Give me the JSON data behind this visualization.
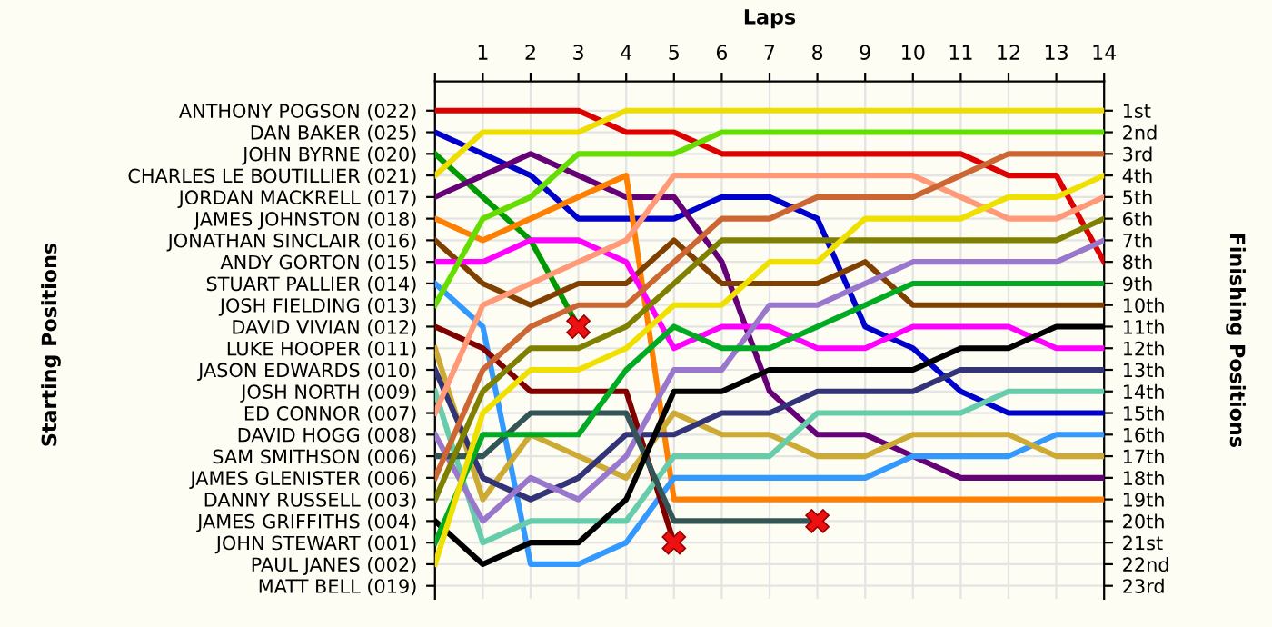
{
  "chart_data": {
    "type": "line",
    "xlabel": "Laps",
    "annotations": [
      "Starting Positions"
    ],
    "y2label": "Finishing Positions",
    "x": [
      0,
      1,
      2,
      3,
      4,
      5,
      6,
      7,
      8,
      9,
      10,
      11,
      12,
      13,
      14
    ],
    "xlim": [
      0,
      14
    ],
    "xticks": [
      {
        "value": 0,
        "label": null
      },
      1,
      2,
      3,
      4,
      5,
      6,
      7,
      8,
      9,
      10,
      11,
      12,
      13,
      14
    ],
    "y_categories": [
      "ANTHONY POGSON (022)",
      "DAN BAKER (025)",
      "JOHN BYRNE (020)",
      "CHARLES LE BOUTILLIER (021)",
      "JORDAN MACKRELL (017)",
      "JAMES JOHNSTON (018)",
      "JONATHAN SINCLAIR (016)",
      "ANDY GORTON (015)",
      "STUART PALLIER (014)",
      "JOSH FIELDING (013)",
      "DAVID VIVIAN (012)",
      "LUKE HOOPER (011)",
      "JASON EDWARDS (010)",
      "JOSH NORTH (009)",
      "ED CONNOR (007)",
      "DAVID HOGG (008)",
      "SAM SMITHSON (006)",
      "JAMES GLENISTER (006)",
      "DANNY RUSSELL (003)",
      "JAMES GRIFFITHS (004)",
      "JOHN STEWART (001)",
      "PAUL JANES (002)",
      "MATT BELL (019)"
    ],
    "y2lim": [
      23.6,
      -0.35
    ],
    "y2ticks": [
      {
        "value": 1,
        "label": "1st"
      },
      {
        "value": 2,
        "label": "2nd"
      },
      {
        "value": 3,
        "label": "3rd"
      },
      {
        "value": 4,
        "label": "4th"
      },
      {
        "value": 5,
        "label": "5th"
      },
      {
        "value": 6,
        "label": "6th"
      },
      {
        "value": 7,
        "label": "7th"
      },
      {
        "value": 8,
        "label": "8th"
      },
      {
        "value": 9,
        "label": "9th"
      },
      {
        "value": 10,
        "label": "10th"
      },
      {
        "value": 11,
        "label": "11th"
      },
      {
        "value": 12,
        "label": "12th"
      },
      {
        "value": 13,
        "label": "13th"
      },
      {
        "value": 14,
        "label": "14th"
      },
      {
        "value": 15,
        "label": "15th"
      },
      {
        "value": 16,
        "label": "16th"
      },
      {
        "value": 17,
        "label": "17th"
      },
      {
        "value": 18,
        "label": "18th"
      },
      {
        "value": 19,
        "label": "19th"
      },
      {
        "value": 20,
        "label": "20th"
      },
      {
        "value": 21,
        "label": "21st"
      },
      {
        "value": 22,
        "label": "22nd"
      },
      {
        "value": 23,
        "label": "23rd"
      }
    ],
    "grid": true,
    "marker": "none",
    "line_style": "solid",
    "series": [
      {
        "axis": "y2",
        "color": "#dd0000",
        "values": [
          1,
          1,
          1,
          1,
          2,
          2,
          3,
          3,
          3,
          3,
          3,
          3,
          4,
          4,
          8
        ]
      },
      {
        "axis": "y2",
        "color": "#0000cc",
        "values": [
          2,
          3,
          4,
          6,
          6,
          6,
          5,
          5,
          6,
          11,
          12,
          14,
          15,
          15,
          15
        ]
      },
      {
        "axis": "y2",
        "color": "#009900",
        "values": [
          3,
          5,
          7,
          11,
          null,
          null,
          null,
          null,
          null,
          null,
          null,
          null,
          null,
          null,
          null
        ]
      },
      {
        "axis": "y2",
        "color": "#eedd00",
        "values": [
          4,
          2,
          2,
          2,
          1,
          1,
          1,
          1,
          1,
          1,
          1,
          1,
          1,
          1,
          1
        ]
      },
      {
        "axis": "y2",
        "color": "#660077",
        "values": [
          5,
          4,
          3,
          4,
          5,
          5,
          8,
          14,
          16,
          16,
          17,
          18,
          18,
          18,
          18
        ]
      },
      {
        "axis": "y2",
        "color": "#ff8000",
        "values": [
          6,
          7,
          6,
          5,
          4,
          19,
          19,
          19,
          19,
          19,
          19,
          19,
          19,
          19,
          19
        ]
      },
      {
        "axis": "y2",
        "color": "#804000",
        "values": [
          7,
          9,
          10,
          9,
          9,
          7,
          9,
          9,
          9,
          8,
          10,
          10,
          10,
          10,
          10
        ]
      },
      {
        "axis": "y2",
        "color": "#ff00ff",
        "values": [
          8,
          8,
          7,
          7,
          8,
          12,
          11,
          11,
          12,
          12,
          11,
          11,
          11,
          12,
          12
        ]
      },
      {
        "axis": "y2",
        "color": "#3399ff",
        "values": [
          9,
          11,
          22,
          22,
          21,
          18,
          18,
          18,
          18,
          18,
          17,
          17,
          17,
          16,
          16
        ]
      },
      {
        "axis": "y2",
        "color": "#66dd00",
        "values": [
          10,
          6,
          5,
          3,
          3,
          3,
          2,
          2,
          2,
          2,
          2,
          2,
          2,
          2,
          2
        ]
      },
      {
        "axis": "y2",
        "color": "#800000",
        "values": [
          11,
          12,
          14,
          14,
          14,
          21,
          null,
          null,
          null,
          null,
          null,
          null,
          null,
          null,
          null
        ]
      },
      {
        "axis": "y2",
        "color": "#ccaa33",
        "values": [
          12,
          19,
          16,
          17,
          18,
          15,
          16,
          16,
          17,
          17,
          16,
          16,
          16,
          17,
          17
        ]
      },
      {
        "axis": "y2",
        "color": "#333377",
        "values": [
          13,
          18,
          19,
          18,
          16,
          16,
          15,
          15,
          14,
          14,
          14,
          13,
          13,
          13,
          13
        ]
      },
      {
        "axis": "y2",
        "color": "#66ccaa",
        "values": [
          14,
          21,
          20,
          20,
          20,
          17,
          17,
          17,
          15,
          15,
          15,
          15,
          14,
          14,
          14
        ]
      },
      {
        "axis": "y2",
        "color": "#ff9977",
        "values": [
          15,
          10,
          9,
          8,
          7,
          4,
          4,
          4,
          4,
          4,
          4,
          5,
          6,
          6,
          5
        ]
      },
      {
        "axis": "y2",
        "color": "#9977cc",
        "values": [
          16,
          20,
          18,
          19,
          17,
          13,
          13,
          10,
          10,
          9,
          8,
          8,
          8,
          8,
          7
        ]
      },
      {
        "axis": "y2",
        "color": "#335555",
        "values": [
          17,
          17,
          15,
          15,
          15,
          20,
          20,
          20,
          20,
          null,
          null,
          null,
          null,
          null,
          null
        ]
      },
      {
        "axis": "y2",
        "color": "#cc6633",
        "values": [
          18,
          13,
          11,
          10,
          10,
          8,
          6,
          6,
          5,
          5,
          5,
          4,
          3,
          3,
          3
        ]
      },
      {
        "axis": "y2",
        "color": "#808000",
        "values": [
          19,
          14,
          12,
          12,
          11,
          9,
          7,
          7,
          7,
          7,
          7,
          7,
          7,
          7,
          6
        ]
      },
      {
        "axis": "y2",
        "color": "#000000",
        "values": [
          20,
          22,
          21,
          21,
          19,
          14,
          14,
          13,
          13,
          13,
          13,
          12,
          12,
          11,
          11
        ]
      },
      {
        "axis": "y2",
        "color": "#00aa22",
        "values": [
          21,
          16,
          16,
          16,
          13,
          11,
          12,
          12,
          11,
          10,
          9,
          9,
          9,
          9,
          9
        ]
      },
      {
        "axis": "y2",
        "color": "#f0e000",
        "values": [
          22,
          15,
          13,
          13,
          12,
          10,
          10,
          8,
          8,
          6,
          6,
          6,
          5,
          5,
          4
        ]
      },
      {
        "axis": "y2",
        "type": "scatter",
        "marker": "cross",
        "color": "#ee1111",
        "x": [
          3,
          5,
          8
        ],
        "values": [
          11,
          21,
          20
        ]
      }
    ]
  }
}
